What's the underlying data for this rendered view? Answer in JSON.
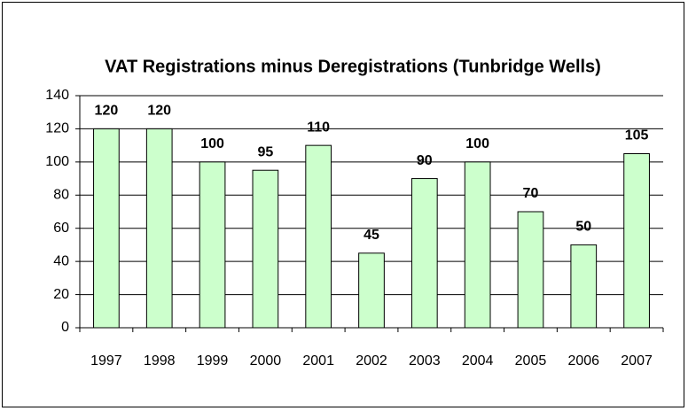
{
  "chart_data": {
    "type": "bar",
    "title": "VAT Registrations minus Deregistrations (Tunbridge Wells)",
    "categories": [
      "1997",
      "1998",
      "1999",
      "2000",
      "2001",
      "2002",
      "2003",
      "2004",
      "2005",
      "2006",
      "2007"
    ],
    "values": [
      120,
      120,
      100,
      95,
      110,
      45,
      90,
      100,
      70,
      50,
      105
    ],
    "color": "#ccffcc",
    "ylim": [
      0,
      140
    ],
    "yticks": [
      0,
      20,
      40,
      60,
      80,
      100,
      120,
      140
    ],
    "grid": true
  }
}
